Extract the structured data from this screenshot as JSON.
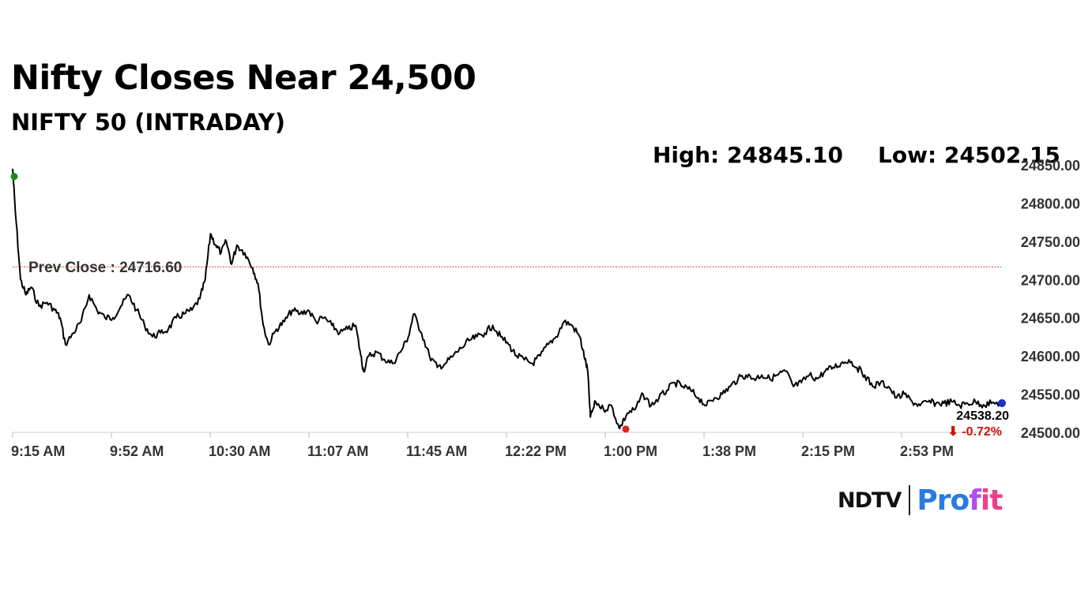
{
  "header": {
    "title": "Nifty Closes Near 24,500",
    "subtitle": "NIFTY 50 (INTRADAY)"
  },
  "stats": {
    "high_label": "High: 24845.10",
    "low_label": "Low: 24502.15"
  },
  "logo": {
    "brand": "NDTV",
    "product_a": "Pro",
    "product_b": "f",
    "product_c": "it"
  },
  "colors": {
    "line": "#000000",
    "prev_close_line": "#d04040",
    "high_marker": "#1a8a1a",
    "low_marker": "#e02020",
    "last_marker": "#1a2fd0",
    "change_negative": "#d01010",
    "axis_text": "#333333"
  },
  "chart_data": {
    "type": "line",
    "title": "NIFTY 50 (INTRADAY)",
    "xlabel": "",
    "ylabel": "",
    "ylim": [
      24500,
      24850
    ],
    "grid": false,
    "x_ticks": [
      "9:15 AM",
      "9:52 AM",
      "10:30 AM",
      "11:07 AM",
      "11:45 AM",
      "12:22 PM",
      "1:00 PM",
      "1:38 PM",
      "2:15 PM",
      "2:53 PM"
    ],
    "y_ticks": [
      "24850.00",
      "24800.00",
      "24750.00",
      "24700.00",
      "24650.00",
      "24600.00",
      "24550.00",
      "24500.00"
    ],
    "prev_close": 24716.6,
    "prev_close_label": "Prev Close : 24716.60",
    "high": {
      "time": "9:15 AM",
      "value": 24845.1
    },
    "low": {
      "time": "1:05 PM",
      "value": 24502.15
    },
    "last": {
      "time": "3:30 PM",
      "value": 24538.2,
      "label": "24538.20",
      "change_label": "⬇ -0.72%"
    },
    "series": [
      {
        "points": [
          [
            "9:15",
            24845
          ],
          [
            "9:16",
            24790
          ],
          [
            "9:18",
            24700
          ],
          [
            "9:20",
            24680
          ],
          [
            "9:22",
            24690
          ],
          [
            "9:25",
            24665
          ],
          [
            "9:28",
            24670
          ],
          [
            "9:31",
            24660
          ],
          [
            "9:33",
            24650
          ],
          [
            "9:35",
            24615
          ],
          [
            "9:38",
            24630
          ],
          [
            "9:41",
            24645
          ],
          [
            "9:44",
            24680
          ],
          [
            "9:47",
            24660
          ],
          [
            "9:50",
            24650
          ],
          [
            "9:53",
            24650
          ],
          [
            "9:56",
            24665
          ],
          [
            "9:59",
            24680
          ],
          [
            "10:02",
            24660
          ],
          [
            "10:05",
            24640
          ],
          [
            "10:08",
            24625
          ],
          [
            "10:11",
            24630
          ],
          [
            "10:14",
            24635
          ],
          [
            "10:17",
            24650
          ],
          [
            "10:20",
            24655
          ],
          [
            "10:23",
            24660
          ],
          [
            "10:26",
            24675
          ],
          [
            "10:28",
            24700
          ],
          [
            "10:30",
            24760
          ],
          [
            "10:32",
            24745
          ],
          [
            "10:34",
            24735
          ],
          [
            "10:36",
            24750
          ],
          [
            "10:38",
            24720
          ],
          [
            "10:40",
            24745
          ],
          [
            "10:43",
            24735
          ],
          [
            "10:46",
            24715
          ],
          [
            "10:48",
            24695
          ],
          [
            "10:50",
            24640
          ],
          [
            "10:52",
            24615
          ],
          [
            "10:55",
            24635
          ],
          [
            "10:58",
            24645
          ],
          [
            "11:01",
            24660
          ],
          [
            "11:04",
            24655
          ],
          [
            "11:07",
            24660
          ],
          [
            "11:10",
            24645
          ],
          [
            "11:13",
            24650
          ],
          [
            "11:16",
            24640
          ],
          [
            "11:19",
            24630
          ],
          [
            "11:22",
            24635
          ],
          [
            "11:25",
            24640
          ],
          [
            "11:27",
            24600
          ],
          [
            "11:28",
            24580
          ],
          [
            "11:30",
            24600
          ],
          [
            "11:33",
            24605
          ],
          [
            "11:36",
            24595
          ],
          [
            "11:39",
            24590
          ],
          [
            "11:42",
            24605
          ],
          [
            "11:45",
            24625
          ],
          [
            "11:47",
            24655
          ],
          [
            "11:50",
            24630
          ],
          [
            "11:53",
            24600
          ],
          [
            "11:56",
            24585
          ],
          [
            "11:59",
            24590
          ],
          [
            "12:02",
            24600
          ],
          [
            "12:05",
            24610
          ],
          [
            "12:08",
            24620
          ],
          [
            "12:11",
            24625
          ],
          [
            "12:14",
            24630
          ],
          [
            "12:17",
            24640
          ],
          [
            "12:20",
            24625
          ],
          [
            "12:23",
            24615
          ],
          [
            "12:26",
            24600
          ],
          [
            "12:29",
            24595
          ],
          [
            "12:32",
            24590
          ],
          [
            "12:35",
            24600
          ],
          [
            "12:38",
            24615
          ],
          [
            "12:41",
            24625
          ],
          [
            "12:44",
            24645
          ],
          [
            "12:47",
            24640
          ],
          [
            "12:50",
            24625
          ],
          [
            "12:52",
            24595
          ],
          [
            "12:53",
            24580
          ],
          [
            "12:54",
            24520
          ],
          [
            "12:56",
            24540
          ],
          [
            "12:59",
            24530
          ],
          [
            "1:02",
            24535
          ],
          [
            "1:05",
            24505
          ],
          [
            "1:08",
            24525
          ],
          [
            "1:11",
            24530
          ],
          [
            "1:14",
            24550
          ],
          [
            "1:17",
            24535
          ],
          [
            "1:20",
            24545
          ],
          [
            "1:23",
            24555
          ],
          [
            "1:26",
            24565
          ],
          [
            "1:29",
            24560
          ],
          [
            "1:32",
            24555
          ],
          [
            "1:35",
            24545
          ],
          [
            "1:38",
            24535
          ],
          [
            "1:41",
            24545
          ],
          [
            "1:44",
            24550
          ],
          [
            "1:47",
            24560
          ],
          [
            "1:50",
            24570
          ],
          [
            "1:53",
            24575
          ],
          [
            "1:56",
            24570
          ],
          [
            "1:59",
            24575
          ],
          [
            "2:02",
            24570
          ],
          [
            "2:05",
            24575
          ],
          [
            "2:08",
            24580
          ],
          [
            "2:11",
            24560
          ],
          [
            "2:14",
            24565
          ],
          [
            "2:17",
            24575
          ],
          [
            "2:20",
            24570
          ],
          [
            "2:23",
            24580
          ],
          [
            "2:26",
            24585
          ],
          [
            "2:29",
            24590
          ],
          [
            "2:32",
            24595
          ],
          [
            "2:35",
            24585
          ],
          [
            "2:38",
            24575
          ],
          [
            "2:41",
            24560
          ],
          [
            "2:44",
            24565
          ],
          [
            "2:47",
            24560
          ],
          [
            "2:50",
            24545
          ],
          [
            "2:53",
            24550
          ],
          [
            "2:56",
            24540
          ],
          [
            "2:59",
            24535
          ],
          [
            "3:02",
            24540
          ],
          [
            "3:05",
            24538
          ],
          [
            "3:08",
            24538
          ],
          [
            "3:11",
            24540
          ],
          [
            "3:14",
            24535
          ],
          [
            "3:17",
            24538
          ],
          [
            "3:20",
            24540
          ],
          [
            "3:23",
            24536
          ],
          [
            "3:26",
            24538
          ],
          [
            "3:30",
            24538
          ]
        ]
      }
    ]
  }
}
